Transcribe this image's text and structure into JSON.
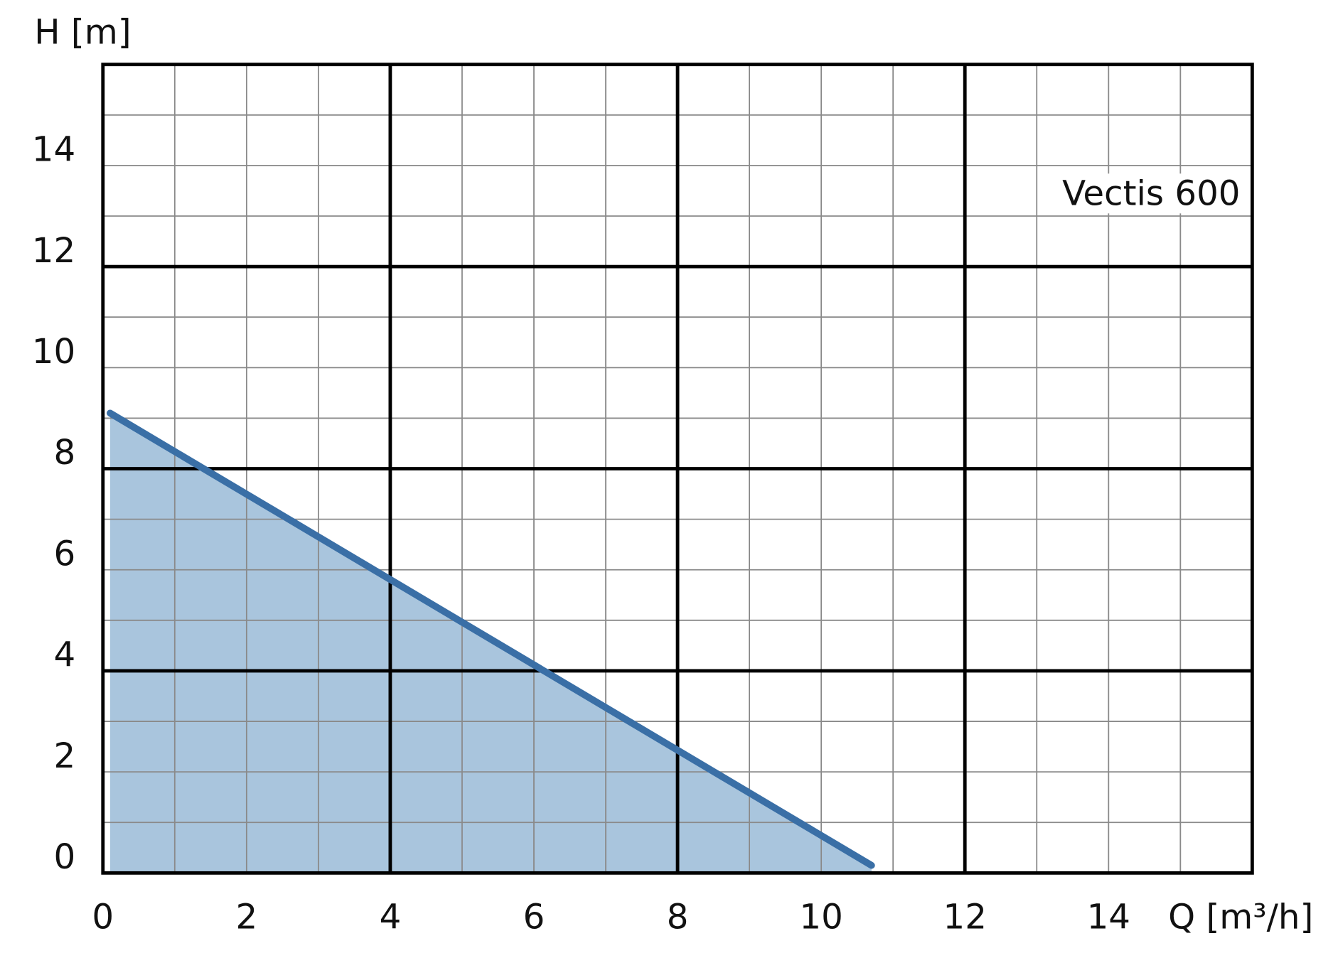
{
  "chart_data": {
    "type": "area",
    "y_label": "H [m]",
    "x_label": "Q [m³/h]",
    "annotation": "Vectis 600",
    "x": [
      0.1,
      10.7
    ],
    "series": [
      {
        "name": "Vectis 600",
        "color": "#3a6fa6",
        "fill": "#a9c5dd",
        "values": [
          9.1,
          0.15
        ]
      }
    ],
    "xlim": [
      0,
      16
    ],
    "ylim": [
      0,
      16
    ],
    "xticks": [
      0,
      2,
      4,
      6,
      8,
      10,
      12,
      14
    ],
    "yticks": [
      0,
      2,
      4,
      6,
      8,
      10,
      12,
      14
    ],
    "major_gridlines": [
      4,
      8,
      12
    ],
    "grid": true
  }
}
